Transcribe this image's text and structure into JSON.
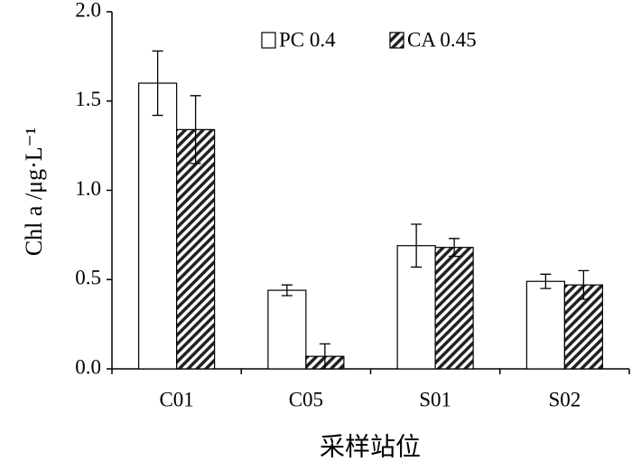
{
  "chart_data": {
    "type": "bar",
    "y_label": "Chl a /μg·L⁻¹",
    "x_label": "采样站位",
    "categories": [
      "C01",
      "C05",
      "S01",
      "S02"
    ],
    "series": [
      {
        "name": "PC 0.4",
        "color": "#ffffff",
        "values": [
          1.6,
          0.44,
          0.69,
          0.49
        ],
        "error": [
          0.18,
          0.03,
          0.12,
          0.04
        ]
      },
      {
        "name": "CA 0.45",
        "color": "hatch",
        "values": [
          1.34,
          0.07,
          0.68,
          0.47
        ],
        "error": [
          0.19,
          0.07,
          0.05,
          0.08
        ]
      }
    ],
    "ylim": [
      0,
      2
    ],
    "yticks": [
      {
        "value": 0,
        "label": "0.0"
      },
      0.5,
      {
        "value": 1,
        "label": "1.0"
      },
      1.5,
      {
        "value": 2,
        "label": "2.0"
      }
    ],
    "legend": "top"
  }
}
